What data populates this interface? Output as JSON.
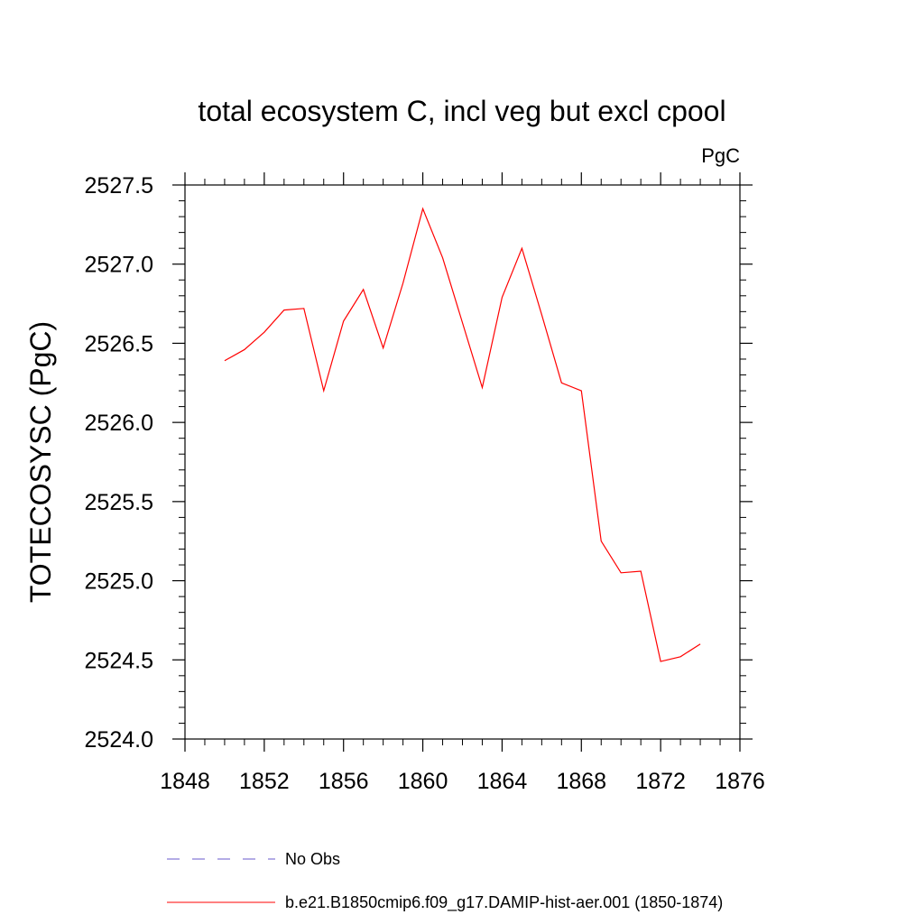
{
  "chart_data": {
    "type": "line",
    "title": "total ecosystem C, incl veg but excl cpool",
    "units_label": "PgC",
    "ylabel": "TOTECOSYSC  (PgC)",
    "xlabel": "",
    "xlim": [
      1848,
      1876
    ],
    "ylim": [
      2524.0,
      2527.5
    ],
    "xticks": [
      1848,
      1852,
      1856,
      1860,
      1864,
      1868,
      1872,
      1876
    ],
    "xtick_labels": [
      "1848",
      "1852",
      "1856",
      "1860",
      "1864",
      "1868",
      "1872",
      "1876"
    ],
    "yticks": [
      2524.0,
      2524.5,
      2525.0,
      2525.5,
      2526.0,
      2526.5,
      2527.0,
      2527.5
    ],
    "ytick_labels": [
      "2524.0",
      "2524.5",
      "2525.0",
      "2525.5",
      "2526.0",
      "2526.5",
      "2527.0",
      "2527.5"
    ],
    "grid": false,
    "legend_position": "bottom",
    "series": [
      {
        "name": "No Obs",
        "color": "#6a5acd",
        "style": "dashed",
        "x": [],
        "y": []
      },
      {
        "name": "b.e21.B1850cmip6.f09_g17.DAMIP-hist-aer.001 (1850-1874)",
        "color": "#ff0000",
        "style": "solid",
        "x": [
          1850,
          1851,
          1852,
          1853,
          1854,
          1855,
          1856,
          1857,
          1858,
          1859,
          1860,
          1861,
          1862,
          1863,
          1864,
          1865,
          1866,
          1867,
          1868,
          1869,
          1870,
          1871,
          1872,
          1873,
          1874
        ],
        "y": [
          2526.39,
          2526.46,
          2526.57,
          2526.71,
          2526.72,
          2526.2,
          2526.64,
          2526.84,
          2526.47,
          2526.88,
          2527.35,
          2527.04,
          2526.63,
          2526.22,
          2526.79,
          2527.1,
          2526.68,
          2526.25,
          2526.2,
          2525.25,
          2525.05,
          2525.06,
          2524.49,
          2524.52,
          2524.6
        ]
      }
    ]
  }
}
